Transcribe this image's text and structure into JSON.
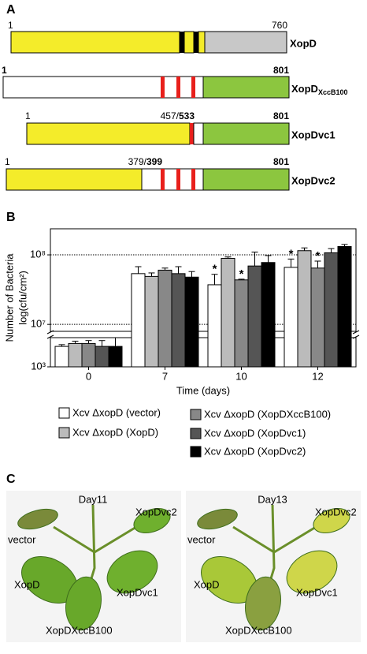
{
  "panels": {
    "a": "A",
    "b": "B",
    "c": "C"
  },
  "constructs": [
    {
      "start": "1",
      "end": "760",
      "name": "XopD"
    },
    {
      "start": "1",
      "end": "801",
      "name": "XopD",
      "name_sub": "XccB100"
    },
    {
      "start": "1",
      "junction": "457/",
      "junction_bold": "533",
      "end": "801",
      "name": "XopDvc1"
    },
    {
      "start": "1",
      "junction": "379/",
      "junction_bold": "399",
      "end": "801",
      "name": "XopDvc2"
    }
  ],
  "chart_data": {
    "type": "bar",
    "y_label": "Number of Bacteria",
    "y_label_2": "log(cfu/cm²)",
    "x_label": "Time (days)",
    "categories": [
      "0",
      "7",
      "10",
      "12"
    ],
    "ylim": [
      3,
      8.375
    ],
    "ybreak": [
      3.5,
      6.9
    ],
    "yticks": [
      {
        "value": 3,
        "label": "10³"
      },
      {
        "value": 7,
        "label": "10⁷"
      },
      {
        "value": 8,
        "label": "10⁸"
      }
    ],
    "grid_lines": [
      7,
      8
    ],
    "significance": "*",
    "series": [
      {
        "name": "Xcv ΔxopD (vector)",
        "color": "#ffffff",
        "values": [
          3.35,
          7.73,
          7.57,
          7.82
        ],
        "errors": [
          0.03,
          0.1,
          0.15,
          0.12
        ],
        "significant": [
          false,
          false,
          true,
          true
        ]
      },
      {
        "name": "Xcv ΔxopD (XopD)",
        "color": "#bbbbbb",
        "values": [
          3.4,
          7.69,
          7.95,
          8.06
        ],
        "errors": [
          0.04,
          0.05,
          0.02,
          0.04
        ],
        "significant": [
          false,
          false,
          false,
          false
        ]
      },
      {
        "name": "Xcv ΔxopD (XopDXccB100)",
        "color": "#888888",
        "values": [
          3.4,
          7.78,
          7.64,
          7.81
        ],
        "errors": [
          0.05,
          0.03,
          0.01,
          0.1
        ],
        "significant": [
          false,
          false,
          true,
          true
        ]
      },
      {
        "name": "Xcv ΔxopD (XopDvc1)",
        "color": "#555555",
        "values": [
          3.35,
          7.73,
          7.84,
          8.03
        ],
        "errors": [
          0.1,
          0.1,
          0.2,
          0.06
        ],
        "significant": [
          false,
          false,
          false,
          false
        ]
      },
      {
        "name": "Xcv ΔxopD (XopDvc2)",
        "color": "#000000",
        "values": [
          3.35,
          7.68,
          7.89,
          8.12
        ],
        "errors": [
          0.15,
          0.08,
          0.1,
          0.03
        ],
        "significant": [
          false,
          false,
          false,
          false
        ]
      }
    ]
  },
  "photos": [
    {
      "day": "Day11",
      "labels": [
        "vector",
        "XopDvc2",
        "XopD",
        "XopDvc1",
        "XopDXccB100"
      ]
    },
    {
      "day": "Day13",
      "labels": [
        "vector",
        "XopDvc2",
        "XopD",
        "XopDvc1",
        "XopDXccB100"
      ]
    }
  ]
}
